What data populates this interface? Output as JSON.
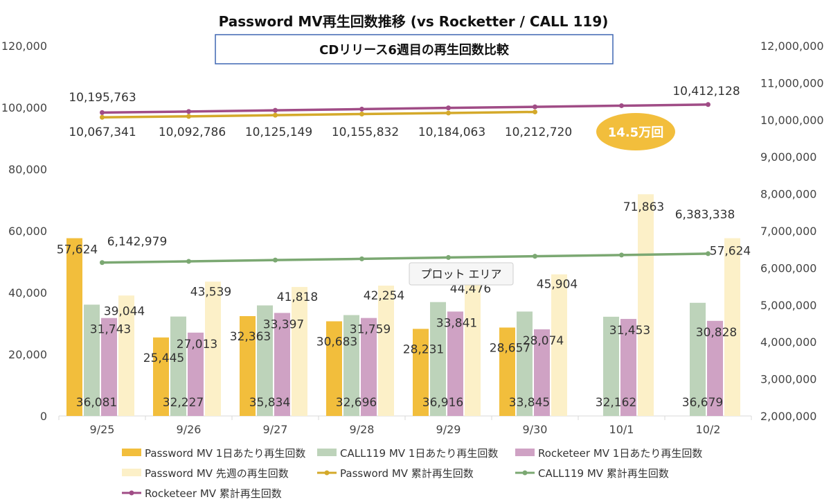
{
  "chart_data": {
    "type": "bar",
    "title": "Password MV再生回数推移 (vs Rocketter / CALL 119)",
    "subtitle": "CDリリース6週目の再生回数比較",
    "categories": [
      "9/25",
      "9/26",
      "9/27",
      "9/28",
      "9/29",
      "9/30",
      "10/1",
      "10/2"
    ],
    "y_left": {
      "range": [
        0,
        120000
      ],
      "ticks": [
        "0",
        "20,000",
        "40,000",
        "60,000",
        "80,000",
        "100,000",
        "120,000"
      ]
    },
    "y_right": {
      "range": [
        2000000,
        12000000
      ],
      "ticks": [
        "2,000,000",
        "3,000,000",
        "4,000,000",
        "5,000,000",
        "6,000,000",
        "7,000,000",
        "8,000,000",
        "9,000,000",
        "10,000,000",
        "11,000,000",
        "12,000,000"
      ]
    },
    "grid": false,
    "legend_position": "bottom",
    "series": [
      {
        "name": "Password MV 1日あたり再生回数",
        "kind": "bar",
        "axis": "left",
        "color": "#F2BE3C",
        "values": [
          57624,
          25445,
          32363,
          30683,
          28231,
          28657,
          null,
          null
        ],
        "labels": [
          "57,624",
          "25,445",
          "32,363",
          "30,683",
          "28,231",
          "28,657",
          "",
          ""
        ]
      },
      {
        "name": "CALL119 MV 1日あたり再生回数",
        "kind": "bar",
        "axis": "left",
        "color": "#BDD3BA",
        "values": [
          36081,
          32227,
          35834,
          32696,
          36916,
          33845,
          32162,
          36679
        ],
        "labels": [
          "36,081",
          "32,227",
          "35,834",
          "32,696",
          "36,916",
          "33,845",
          "32,162",
          "36,679"
        ]
      },
      {
        "name": "Rocketeer MV 1日あたり再生回数",
        "kind": "bar",
        "axis": "left",
        "color": "#CFA2C4",
        "values": [
          31743,
          27013,
          33397,
          31759,
          33841,
          28074,
          31453,
          30828
        ],
        "labels": [
          "31,743",
          "27,013",
          "33,397",
          "31,759",
          "33,841",
          "28,074",
          "31,453",
          "30,828"
        ]
      },
      {
        "name": "Password MV 先週の再生回数",
        "kind": "bar",
        "axis": "left",
        "color": "#FCF0C8",
        "values": [
          39044,
          43539,
          41818,
          42254,
          44476,
          45904,
          71863,
          57624
        ],
        "labels": [
          "39,044",
          "43,539",
          "41,818",
          "42,254",
          "44,476",
          "45,904",
          "71,863",
          "57,624"
        ]
      },
      {
        "name": "Password MV 累計再生回数",
        "kind": "line",
        "axis": "right",
        "color": "#D4A92A",
        "values": [
          10067341,
          10092786,
          10125149,
          10155832,
          10184063,
          10212720,
          null,
          null
        ],
        "labels": [
          "10,067,341",
          "10,092,786",
          "10,125,149",
          "10,155,832",
          "10,184,063",
          "10,212,720",
          "",
          ""
        ]
      },
      {
        "name": "CALL119 MV 累計再生回数",
        "kind": "line",
        "axis": "right",
        "color": "#7BA872",
        "values": [
          6142979,
          6175206,
          6211040,
          6243736,
          6280652,
          6314497,
          6346659,
          6383338
        ],
        "labels": [
          "6,142,979",
          "",
          "",
          "",
          "",
          "",
          "",
          "6,383,338"
        ]
      },
      {
        "name": "Rocketeer MV 累計再生回数",
        "kind": "line",
        "axis": "right",
        "color": "#A04C86",
        "values": [
          10195763,
          10222776,
          10256173,
          10287932,
          10321773,
          10349847,
          10381300,
          10412128
        ],
        "labels": [
          "10,195,763",
          "",
          "",
          "",
          "",
          "",
          "",
          "10,412,128"
        ]
      }
    ],
    "annotations": {
      "badge": "14.5万回",
      "tooltip": "プロット エリア"
    }
  }
}
